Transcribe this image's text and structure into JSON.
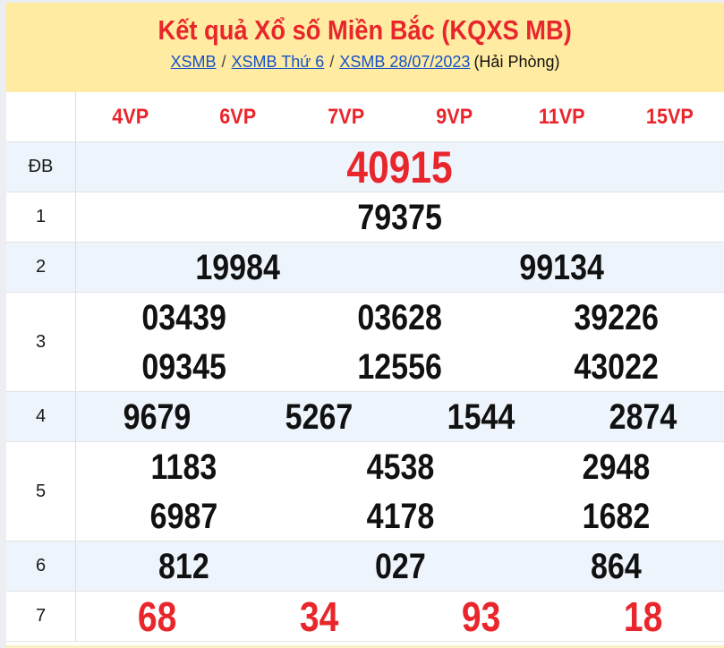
{
  "header": {
    "title": "Kết quả Xổ số Miền Bắc (KQXS MB)",
    "breadcrumb": {
      "links": [
        "XSMB",
        "XSMB Thứ 6",
        "XSMB 28/07/2023"
      ],
      "separator": "/",
      "suffix": "(Hải Phòng)"
    }
  },
  "table": {
    "columns": [
      "4VP",
      "6VP",
      "7VP",
      "9VP",
      "11VP",
      "15VP"
    ],
    "rows": [
      {
        "label": "ĐB",
        "emphasis": "jackpot",
        "lines": [
          [
            "40915"
          ]
        ]
      },
      {
        "label": "1",
        "emphasis": "normal",
        "lines": [
          [
            "79375"
          ]
        ]
      },
      {
        "label": "2",
        "emphasis": "normal",
        "lines": [
          [
            "19984",
            "99134"
          ]
        ]
      },
      {
        "label": "3",
        "emphasis": "normal",
        "lines": [
          [
            "03439",
            "03628",
            "39226"
          ],
          [
            "09345",
            "12556",
            "43022"
          ]
        ]
      },
      {
        "label": "4",
        "emphasis": "normal",
        "lines": [
          [
            "9679",
            "5267",
            "1544",
            "2874"
          ]
        ]
      },
      {
        "label": "5",
        "emphasis": "normal",
        "lines": [
          [
            "1183",
            "4538",
            "2948"
          ],
          [
            "6987",
            "4178",
            "1682"
          ]
        ]
      },
      {
        "label": "6",
        "emphasis": "normal",
        "lines": [
          [
            "812",
            "027",
            "864"
          ]
        ]
      },
      {
        "label": "7",
        "emphasis": "red",
        "lines": [
          [
            "68",
            "34",
            "93",
            "18"
          ]
        ]
      }
    ]
  },
  "colors": {
    "accent_red": "#E8262C",
    "header_bg": "#FFEBA1",
    "alt_row_bg": "#EDF4FB",
    "link_blue": "#1552C8"
  }
}
